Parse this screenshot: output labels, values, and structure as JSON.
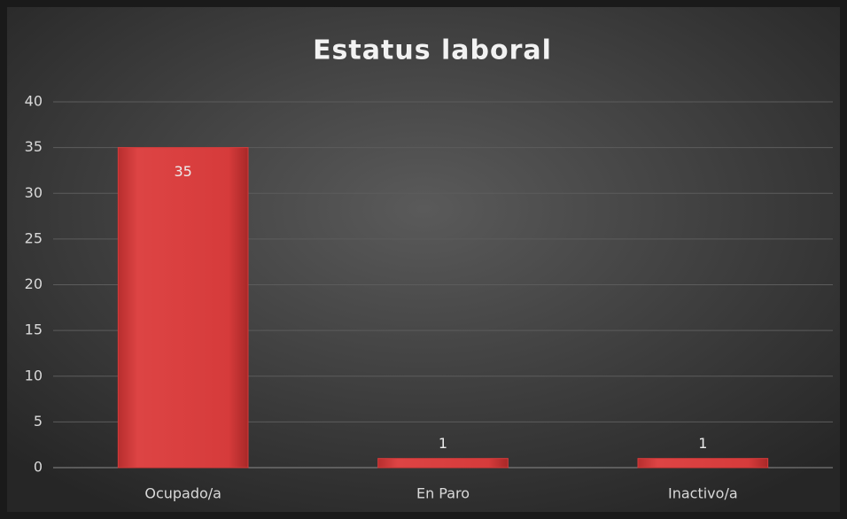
{
  "chart_data": {
    "type": "bar",
    "title": "Estatus laboral",
    "categories": [
      "Ocupado/a",
      "En Paro",
      "Inactivo/a"
    ],
    "values": [
      35,
      1,
      1
    ],
    "color": "#d63b3b",
    "ylim": [
      0,
      40
    ],
    "yticks": [
      0,
      5,
      10,
      15,
      20,
      25,
      30,
      35,
      40
    ],
    "grid": true,
    "data_labels": true
  }
}
